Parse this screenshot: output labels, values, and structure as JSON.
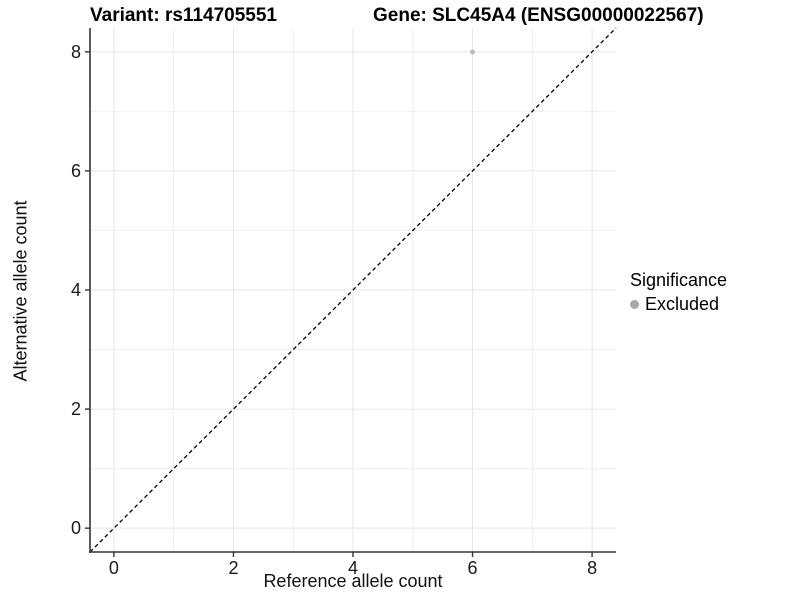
{
  "titles": {
    "variant": "Variant: rs114705551",
    "gene": "Gene: SLC45A4 (ENSG00000022567)"
  },
  "legend": {
    "title": "Significance",
    "items": [
      {
        "label": "Excluded",
        "color": "#a8a8a8"
      }
    ]
  },
  "colors": {
    "background": "#ffffff",
    "axis_line": "#333333",
    "tick_text": "#1a1a1a",
    "grid_major": "#e6e6e6",
    "grid_minor": "#f0f0f0",
    "reference_line": "#000000",
    "point": "#bdbdbd"
  },
  "chart_data": {
    "type": "scatter",
    "title": "Variant: rs114705551    Gene: SLC45A4 (ENSG00000022567)",
    "xlabel": "Reference allele count",
    "ylabel": "Alternative allele count",
    "xlim": [
      -0.4,
      8.4
    ],
    "ylim": [
      -0.4,
      8.4
    ],
    "x_ticks": [
      0,
      2,
      4,
      6,
      8
    ],
    "y_ticks": [
      0,
      2,
      4,
      6,
      8
    ],
    "gridlines": {
      "x_major": [
        0,
        2,
        4,
        6,
        8
      ],
      "x_minor": [
        1,
        3,
        5,
        7
      ],
      "y_major": [
        0,
        2,
        4,
        6,
        8
      ],
      "y_minor": [
        1,
        3,
        5,
        7
      ]
    },
    "series": [
      {
        "name": "Excluded",
        "color": "#bdbdbd",
        "marker_radius": 2.5,
        "points": [
          [
            6,
            8
          ]
        ]
      }
    ],
    "reference_line": {
      "type": "identity y=x",
      "style": "dashed",
      "color": "#000000"
    },
    "legend_position": "right",
    "grid": "on"
  }
}
